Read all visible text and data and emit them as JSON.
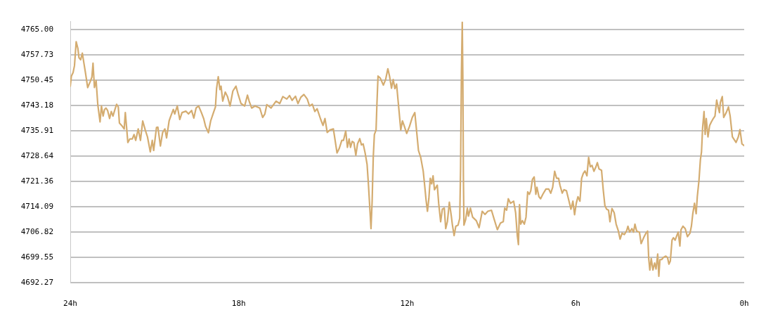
{
  "chart_data": {
    "type": "line",
    "color": "#d4ac70",
    "grid": "y",
    "xlim": [
      24,
      0
    ],
    "xticks": [
      {
        "value": 24,
        "label": "24h"
      },
      {
        "value": 18,
        "label": "18h"
      },
      {
        "value": 12,
        "label": "12h"
      },
      {
        "value": 6,
        "label": "6h"
      },
      {
        "value": 0,
        "label": "0h"
      }
    ],
    "ylim": [
      4692.27,
      4767.4
    ],
    "yticks": [
      4692.27,
      4699.55,
      4706.82,
      4714.09,
      4721.36,
      4728.64,
      4735.91,
      4743.18,
      4750.45,
      4757.73,
      {
        "value": 4765,
        "label": "4765.00"
      }
    ],
    "x": [
      24,
      23.96,
      23.9,
      23.85,
      23.79,
      23.73,
      23.69,
      23.63,
      23.57,
      23.52,
      23.46,
      23.38,
      23.29,
      23.23,
      23.19,
      23.14,
      23.08,
      23.02,
      22.94,
      22.89,
      22.83,
      22.78,
      22.73,
      22.67,
      22.6,
      22.54,
      22.48,
      22.42,
      22.35,
      22.29,
      22.25,
      22.17,
      22.08,
      22.04,
      22,
      21.95,
      21.88,
      21.79,
      21.73,
      21.67,
      21.58,
      21.5,
      21.42,
      21.33,
      21.25,
      21.15,
      21.08,
      21.03,
      20.93,
      20.88,
      20.79,
      20.71,
      20.63,
      20.57,
      20.48,
      20.42,
      20.33,
      20.28,
      20.19,
      20.1,
      20.02,
      19.88,
      19.79,
      19.68,
      19.6,
      19.52,
      19.43,
      19.33,
      19.25,
      19.18,
      19.08,
      19,
      18.9,
      18.83,
      18.79,
      18.73,
      18.67,
      18.63,
      18.57,
      18.48,
      18.4,
      18.31,
      18.21,
      18.1,
      18.02,
      17.92,
      17.79,
      17.69,
      17.63,
      17.54,
      17.42,
      17.25,
      17.15,
      17.07,
      17,
      16.85,
      16.67,
      16.54,
      16.43,
      16.29,
      16.19,
      16.1,
      15.98,
      15.89,
      15.79,
      15.68,
      15.56,
      15.48,
      15.38,
      15.29,
      15.21,
      15.08,
      15,
      14.93,
      14.85,
      14.75,
      14.63,
      14.5,
      14.42,
      14.33,
      14.27,
      14.19,
      14.13,
      14.07,
      14.02,
      13.96,
      13.9,
      13.83,
      13.77,
      13.69,
      13.63,
      13.57,
      13.5,
      13.43,
      13.38,
      13.33,
      13.29,
      13.25,
      13.21,
      13.17,
      13.11,
      13.08,
      13.04,
      12.96,
      12.85,
      12.77,
      12.69,
      12.63,
      12.56,
      12.5,
      12.44,
      12.38,
      12.29,
      12.23,
      12.17,
      12.1,
      12.02,
      11.92,
      11.82,
      11.73,
      11.67,
      11.6,
      11.52,
      11.43,
      11.38,
      11.33,
      11.28,
      11.23,
      11.18,
      11.13,
      11.08,
      11.03,
      10.93,
      10.88,
      10.81,
      10.75,
      10.68,
      10.63,
      10.57,
      10.5,
      10.43,
      10.39,
      10.33,
      10.27,
      10.19,
      10.13,
      10.1,
      10.07,
      10.04,
      10.02,
      10,
      9.98,
      9.92,
      9.86,
      9.82,
      9.75,
      9.67,
      9.54,
      9.44,
      9.33,
      9.23,
      9.13,
      9,
      8.9,
      8.79,
      8.68,
      8.58,
      8.53,
      8.46,
      8.4,
      8.32,
      8.21,
      8.14,
      8.08,
      8.04,
      8,
      7.96,
      7.9,
      7.83,
      7.77,
      7.71,
      7.65,
      7.6,
      7.54,
      7.48,
      7.42,
      7.38,
      7.31,
      7.25,
      7.17,
      7.06,
      6.96,
      6.89,
      6.82,
      6.75,
      6.68,
      6.61,
      6.56,
      6.48,
      6.42,
      6.33,
      6.25,
      6.17,
      6.1,
      6.04,
      5.98,
      5.92,
      5.85,
      5.79,
      5.73,
      5.67,
      5.6,
      5.54,
      5.48,
      5.42,
      5.35,
      5.28,
      5.23,
      5.17,
      5.08,
      5.02,
      4.96,
      4.9,
      4.83,
      4.78,
      4.71,
      4.63,
      4.56,
      4.48,
      4.42,
      4.35,
      4.27,
      4.19,
      4.14,
      4.08,
      4,
      3.94,
      3.89,
      3.83,
      3.73,
      3.67,
      3.58,
      3.5,
      3.44,
      3.4,
      3.36,
      3.31,
      3.25,
      3.19,
      3.14,
      3.08,
      3.04,
      3,
      2.94,
      2.88,
      2.79,
      2.73,
      2.68,
      2.63,
      2.57,
      2.52,
      2.46,
      2.4,
      2.35,
      2.29,
      2.25,
      2.18,
      2.1,
      2.02,
      1.93,
      1.88,
      1.83,
      1.77,
      1.71,
      1.67,
      1.61,
      1.56,
      1.52,
      1.48,
      1.43,
      1.39,
      1.35,
      1.29,
      1.23,
      1.17,
      1.1,
      1.04,
      0.98,
      0.93,
      0.88,
      0.85,
      0.78,
      0.73,
      0.64,
      0.56,
      0.5,
      0.42,
      0.29,
      0.21,
      0.15,
      0.08,
      0
    ],
    "values": [
      4748.8,
      4751.7,
      4752.7,
      4754.7,
      4761.6,
      4759.7,
      4757.0,
      4756.4,
      4758.3,
      4755.7,
      4752.7,
      4748.4,
      4750.1,
      4751.4,
      4755.4,
      4748.4,
      4750.4,
      4743.5,
      4738.5,
      4743.1,
      4740.2,
      4742.1,
      4742.5,
      4741.8,
      4739.5,
      4741.5,
      4740.2,
      4741.8,
      4743.6,
      4742.8,
      4738.2,
      4737.5,
      4736.5,
      4741.2,
      4737.5,
      4732.6,
      4733.6,
      4733.6,
      4734.9,
      4733.2,
      4736.5,
      4733.2,
      4738.8,
      4736.2,
      4734.2,
      4729.9,
      4733.2,
      4730.3,
      4736.9,
      4737.0,
      4731.6,
      4735.5,
      4736.5,
      4733.9,
      4738.8,
      4740.2,
      4742.1,
      4740.8,
      4743.1,
      4739.2,
      4741.2,
      4741.6,
      4740.8,
      4741.8,
      4739.6,
      4742.5,
      4743.1,
      4741.2,
      4739.5,
      4737.2,
      4735.4,
      4738.8,
      4741.2,
      4742.8,
      4748.1,
      4751.5,
      4747.8,
      4748.8,
      4744.5,
      4747.1,
      4745.8,
      4743.1,
      4747.4,
      4748.8,
      4746.4,
      4743.8,
      4743.1,
      4746.2,
      4744.5,
      4742.5,
      4743.1,
      4742.5,
      4739.8,
      4740.8,
      4743.5,
      4742.5,
      4744.5,
      4743.8,
      4745.8,
      4745.1,
      4746.1,
      4744.7,
      4745.9,
      4743.8,
      4745.6,
      4746.4,
      4745.1,
      4743.1,
      4743.6,
      4741.5,
      4742.3,
      4739.2,
      4737.5,
      4739.5,
      4735.5,
      4736.2,
      4736.5,
      4729.6,
      4730.9,
      4733.2,
      4733.2,
      4735.9,
      4731.2,
      4733.6,
      4731.2,
      4732.9,
      4732.6,
      4728.9,
      4732.2,
      4733.7,
      4731.9,
      4732.2,
      4729.6,
      4726.3,
      4720.3,
      4713.4,
      4707.8,
      4715.7,
      4728.3,
      4734.9,
      4736.2,
      4743.5,
      4751.7,
      4751.1,
      4749.1,
      4750.7,
      4753.8,
      4751.7,
      4748.2,
      4750.7,
      4748.1,
      4749.4,
      4741.5,
      4736.2,
      4738.8,
      4737.2,
      4735.2,
      4737.2,
      4739.8,
      4741.2,
      4736.2,
      4730.3,
      4728.3,
      4724.3,
      4720.3,
      4716.1,
      4712.8,
      4716.4,
      4722.3,
      4720.7,
      4723.0,
      4719.0,
      4720.3,
      4715.1,
      4709.8,
      4713.4,
      4713.7,
      4707.8,
      4709.8,
      4715.4,
      4711.4,
      4708.8,
      4705.8,
      4708.5,
      4708.8,
      4710.8,
      4725.0,
      4752.7,
      4767.2,
      4752.1,
      4723.0,
      4708.8,
      4710.4,
      4713.7,
      4711.4,
      4713.7,
      4711.1,
      4710.1,
      4708.1,
      4712.8,
      4711.9,
      4712.8,
      4713.1,
      4710.4,
      4707.5,
      4709.4,
      4709.8,
      4713.7,
      4713.1,
      4716.4,
      4715.1,
      4715.7,
      4712.4,
      4705.8,
      4703.2,
      4714.7,
      4709.1,
      4710.1,
      4709.1,
      4711.1,
      4718.4,
      4717.7,
      4718.7,
      4722.0,
      4722.7,
      4717.7,
      4719.7,
      4717.0,
      4716.4,
      4717.7,
      4719.2,
      4719.2,
      4718.0,
      4719.7,
      4724.3,
      4722.3,
      4722.3,
      4720.3,
      4718.0,
      4719.0,
      4718.7,
      4716.1,
      4713.4,
      4715.7,
      4711.8,
      4715.1,
      4717.0,
      4715.7,
      4722.3,
      4723.7,
      4724.4,
      4723.0,
      4728.3,
      4725.6,
      4726.0,
      4724.3,
      4725.6,
      4726.8,
      4725.0,
      4724.6,
      4719.0,
      4714.4,
      4713.4,
      4713.1,
      4709.8,
      4713.6,
      4712.4,
      4709.1,
      4707.1,
      4704.8,
      4706.5,
      4706.1,
      4707.1,
      4708.5,
      4706.8,
      4707.8,
      4706.8,
      4709.1,
      4707.1,
      4706.8,
      4703.5,
      4705.2,
      4706.5,
      4707.1,
      4699.2,
      4695.9,
      4699.2,
      4695.9,
      4697.9,
      4696.2,
      4700.5,
      4694.1,
      4698.9,
      4698.9,
      4699.5,
      4699.9,
      4699.5,
      4697.6,
      4698.5,
      4704.5,
      4705.2,
      4704.5,
      4705.8,
      4706.8,
      4702.8,
      4707.5,
      4708.5,
      4707.8,
      4705.5,
      4706.5,
      4708.5,
      4712.1,
      4715.1,
      4712.1,
      4717.0,
      4721.7,
      4727.6,
      4729.9,
      4736.9,
      4741.5,
      4734.9,
      4739.5,
      4734.2,
      4737.5,
      4738.5,
      4739.5,
      4740.2,
      4744.8,
      4742.8,
      4741.2,
      4744.1,
      4745.8,
      4739.8,
      4741.2,
      4742.8,
      4740.2,
      4734.2,
      4732.6,
      4734.2,
      4736.3,
      4732.2,
      4731.7
    ]
  }
}
